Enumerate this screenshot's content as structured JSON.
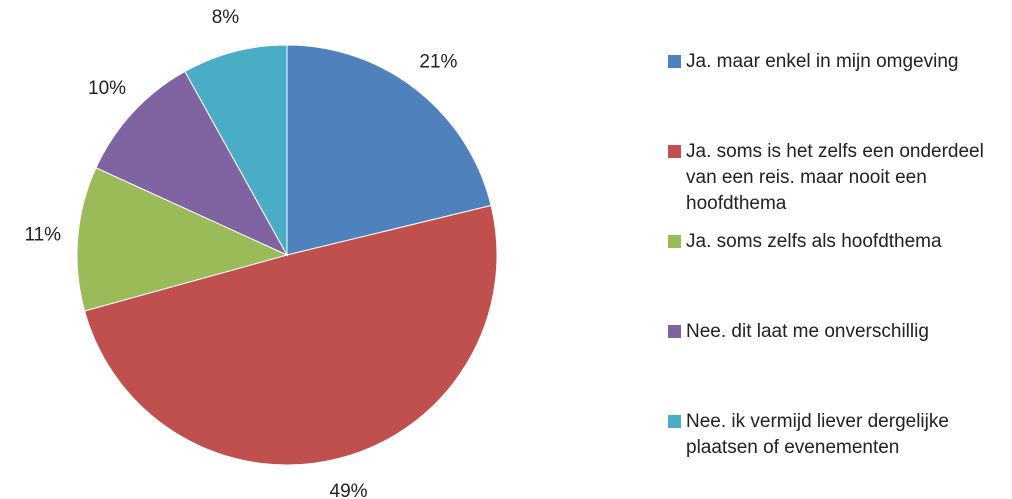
{
  "chart_data": {
    "type": "pie",
    "categories": [
      "Ja. maar enkel in mijn omgeving",
      "Ja. soms is het zelfs een onderdeel van een reis. maar nooit een hoofdthema",
      "Ja. soms zelfs als hoofdthema",
      "Nee. dit laat me onverschillig",
      "Nee. ik vermijd liever dergelijke plaatsen of evenementen"
    ],
    "values": [
      21,
      49,
      11,
      10,
      8
    ],
    "value_labels": [
      "21%",
      "49%",
      "11%",
      "10%",
      "8%"
    ],
    "colors": [
      "#4f81bd",
      "#c0504d",
      "#9bbb59",
      "#8064a2",
      "#4bacc6"
    ],
    "legend": "right"
  }
}
